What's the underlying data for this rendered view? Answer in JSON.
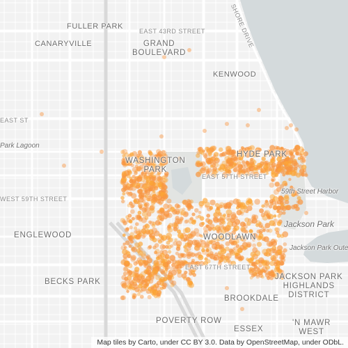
{
  "map": {
    "labels": {
      "fuller_park": "FULLER PARK",
      "east_43rd_street": "EAST 43RD STREET",
      "canaryville": "CANARYVILLE",
      "grand_boulevard": "GRAND\nBOULEVARD",
      "kenwood": "KENWOOD",
      "shore_drive": "SHORE DRIVE",
      "east_street_left": "EAST ST",
      "park_lagoon": "Park Lagoon",
      "washington_park": "WASHINGTON\nPARK",
      "hyde_park": "HYDE PARK",
      "east_57th_street": "EAST 57TH STREET",
      "harbor": "59th Street Harbor",
      "west_59th_street": "WEST 59TH STREET",
      "englewood": "ENGLEWOOD",
      "jackson_park": "Jackson Park",
      "woodlawn": "WOODLAWN",
      "jackson_park_outer": "Jackson Park Oute",
      "east_67th_street": "EAST 67TH STREET",
      "becks_park": "BECKS PARK",
      "jackson_park_highlands": "JACKSON PARK\nHIGHLANDS\nDISTRICT",
      "brookdale": "BROOKDALE",
      "poverty_row": "POVERTY ROW",
      "essex": "ESSEX",
      "n_mawr_west": "'N MAWR\nWEST"
    },
    "attribution": "Map tiles by Carto, under CC BY 3.0. Data by OpenStreetMap, under ODbL.",
    "colors": {
      "background": "#f2f2f2",
      "street": "#ffffff",
      "water": "#d4dadc",
      "park": "#e2e4e2",
      "point_core": "#fca636",
      "point_halo": "#f89540"
    }
  }
}
